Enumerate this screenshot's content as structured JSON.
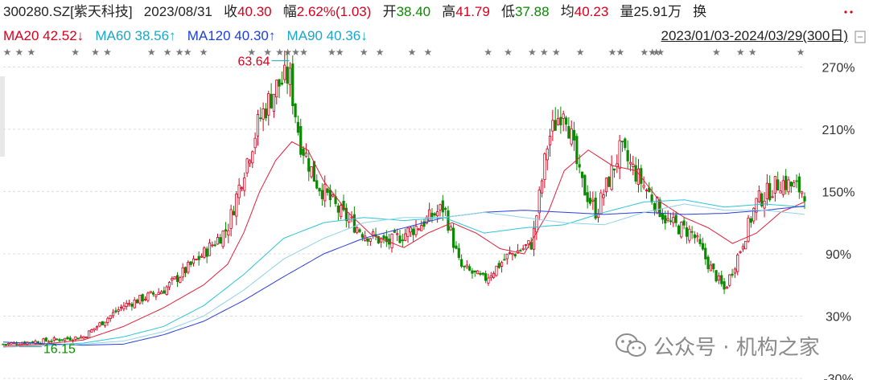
{
  "header": {
    "stock": "300280.SZ[紫天科技]",
    "date": "2023/08/31",
    "close_label": "收",
    "close_value": "40.30",
    "amp_label": "幅",
    "amp_value": "2.62%(1.03)",
    "open_label": "开",
    "open_value": "38.40",
    "high_label": "高",
    "high_value": "41.79",
    "low_label": "低",
    "low_value": "37.88",
    "avg_label": "均",
    "avg_value": "40.23",
    "vol_label": "量",
    "vol_value": "25.91万",
    "turnover_label": "换",
    "menu_icon": "more-dots-icon"
  },
  "ma_legend": {
    "ma20": "MA20 42.52↓",
    "ma60": "MA60 38.56↑",
    "ma120": "MA120 40.30↑",
    "ma90": "MA90 40.36↓"
  },
  "range_label": "2023/01/03-2024/03/29(300日)",
  "watermark": "公众号 · 机构之家",
  "colors": {
    "up": "#d6001c",
    "down": "#0a8a00",
    "ma20": "#e0203a",
    "ma60": "#2ec4d6",
    "ma120": "#2a3fd8",
    "ma90": "#8fd3e8"
  },
  "chart_data": {
    "type": "line",
    "title": "",
    "xlabel": "",
    "ylabel": "",
    "x_range": [
      "2023/01/03",
      "2024/03/29"
    ],
    "n_days": 300,
    "y_axis_unit": "percent change",
    "ylim": [
      -30,
      285
    ],
    "y_ticks": [
      "270%",
      "210%",
      "150%",
      "90%",
      "30%",
      "-30%"
    ],
    "y_tick_values": [
      270,
      210,
      150,
      90,
      30,
      -30
    ],
    "annotations": [
      {
        "label": "63.64",
        "t": 0.357,
        "value": 276
      },
      {
        "label": "16.15",
        "t": 0.02,
        "value": 2
      }
    ],
    "series": [
      {
        "name": "price",
        "t": [
          0.0,
          0.05,
          0.1,
          0.15,
          0.2,
          0.25,
          0.28,
          0.3,
          0.32,
          0.34,
          0.357,
          0.37,
          0.39,
          0.42,
          0.45,
          0.48,
          0.52,
          0.55,
          0.57,
          0.6,
          0.63,
          0.66,
          0.68,
          0.7,
          0.72,
          0.74,
          0.77,
          0.8,
          0.83,
          0.86,
          0.88,
          0.9,
          0.92,
          0.94,
          0.97,
          1.0
        ],
        "value": [
          3,
          6,
          10,
          40,
          55,
          90,
          115,
          170,
          220,
          250,
          262,
          200,
          160,
          130,
          110,
          100,
          118,
          135,
          78,
          65,
          88,
          100,
          200,
          235,
          160,
          130,
          190,
          155,
          120,
          110,
          80,
          55,
          95,
          140,
          160,
          150
        ]
      },
      {
        "name": "MA20",
        "t": [
          0.0,
          0.05,
          0.1,
          0.15,
          0.2,
          0.25,
          0.28,
          0.3,
          0.32,
          0.34,
          0.36,
          0.38,
          0.4,
          0.43,
          0.46,
          0.5,
          0.53,
          0.56,
          0.59,
          0.62,
          0.65,
          0.68,
          0.7,
          0.73,
          0.76,
          0.79,
          0.82,
          0.85,
          0.88,
          0.91,
          0.94,
          0.97,
          1.0
        ],
        "value": [
          1,
          3,
          7,
          20,
          38,
          60,
          80,
          110,
          150,
          180,
          198,
          190,
          160,
          130,
          108,
          96,
          110,
          120,
          110,
          95,
          90,
          130,
          170,
          190,
          175,
          170,
          140,
          125,
          115,
          100,
          110,
          130,
          140
        ]
      },
      {
        "name": "MA60",
        "t": [
          0.0,
          0.1,
          0.15,
          0.2,
          0.25,
          0.3,
          0.35,
          0.4,
          0.45,
          0.5,
          0.55,
          0.6,
          0.65,
          0.7,
          0.75,
          0.8,
          0.85,
          0.9,
          0.95,
          1.0
        ],
        "value": [
          0,
          4,
          10,
          20,
          40,
          70,
          105,
          120,
          125,
          122,
          125,
          110,
          115,
          118,
          130,
          140,
          142,
          135,
          138,
          135
        ]
      },
      {
        "name": "MA120",
        "t": [
          0.0,
          0.1,
          0.15,
          0.2,
          0.25,
          0.3,
          0.35,
          0.4,
          0.45,
          0.5,
          0.55,
          0.6,
          0.65,
          0.7,
          0.75,
          0.8,
          0.85,
          0.9,
          0.95,
          1.0
        ],
        "value": [
          5,
          2,
          3,
          12,
          25,
          45,
          68,
          90,
          105,
          115,
          125,
          130,
          132,
          130,
          128,
          130,
          128,
          129,
          132,
          136
        ]
      },
      {
        "name": "MA90",
        "t": [
          0.0,
          0.1,
          0.15,
          0.2,
          0.25,
          0.3,
          0.35,
          0.4,
          0.45,
          0.5,
          0.55,
          0.6,
          0.65,
          0.7,
          0.75,
          0.8,
          0.85,
          0.9,
          0.95,
          1.0
        ],
        "value": [
          0,
          3,
          6,
          15,
          30,
          55,
          85,
          105,
          120,
          125,
          125,
          130,
          125,
          120,
          118,
          130,
          138,
          132,
          132,
          128
        ]
      }
    ]
  }
}
